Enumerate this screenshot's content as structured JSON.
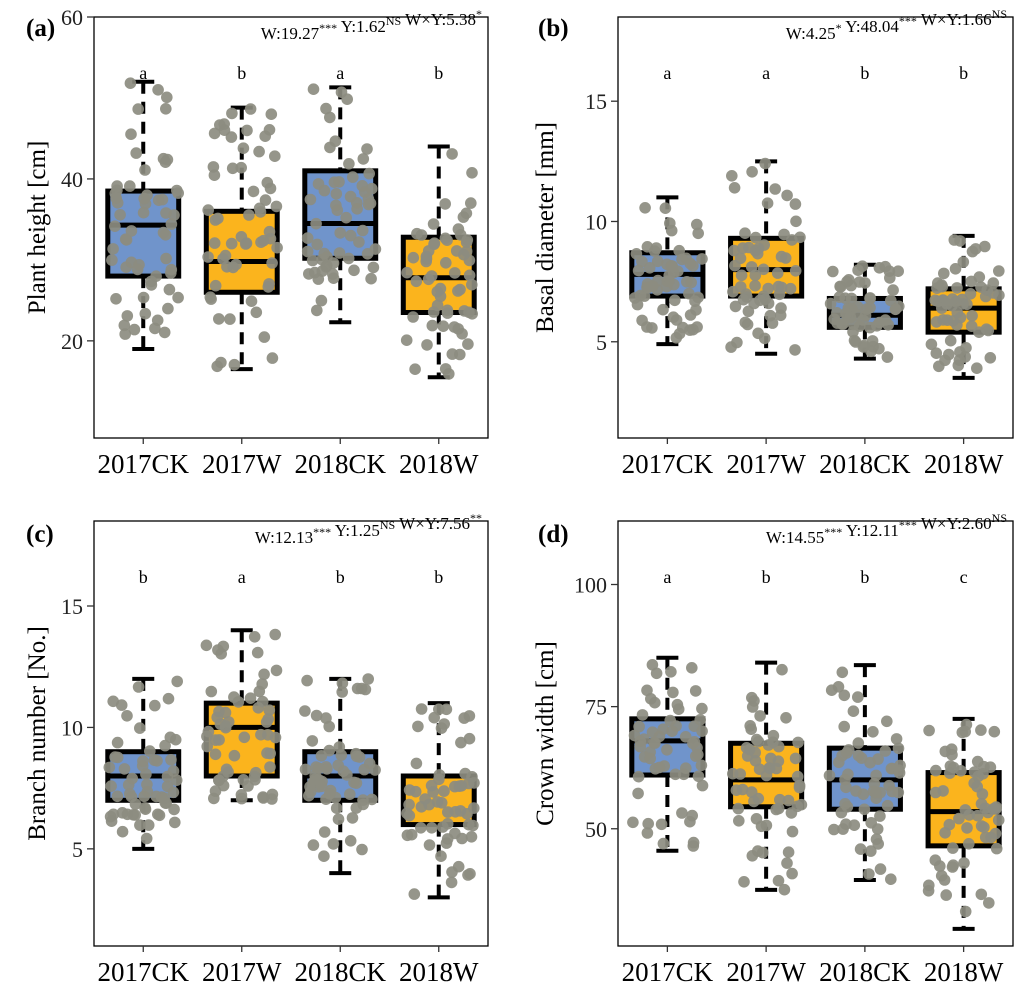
{
  "colors": {
    "CK": "#7094cb",
    "W": "#fbb41d",
    "points": "#8c8c80",
    "box_stroke": "#000000"
  },
  "chart_data": [
    {
      "type": "box",
      "panel_label": "(a)",
      "ylabel": "Plant height [cm]",
      "ylim": [
        8,
        60
      ],
      "yticks": [
        "20",
        "40",
        "60"
      ],
      "annotation": {
        "w": "W:19.27",
        "w_sig": "***",
        "y": "Y:1.62",
        "y_sig": "NS",
        "wy": "W×Y:5.38",
        "wy_sig": "*"
      },
      "categories": [
        "2017CK",
        "2017W",
        "2018CK",
        "2018W"
      ],
      "boxes": [
        {
          "group": "2017CK",
          "treatment": "CK",
          "min": 19,
          "q1": 28,
          "median": 34.3,
          "q3": 38.5,
          "max": 52,
          "letter": "a"
        },
        {
          "group": "2017W",
          "treatment": "W",
          "min": 16.5,
          "q1": 26,
          "median": 29.8,
          "q3": 36,
          "max": 48.8,
          "letter": "b"
        },
        {
          "group": "2018CK",
          "treatment": "CK",
          "min": 22.3,
          "q1": 30.2,
          "median": 34.5,
          "q3": 41,
          "max": 51.3,
          "letter": "a"
        },
        {
          "group": "2018W",
          "treatment": "W",
          "min": 15.5,
          "q1": 23.5,
          "median": 27.8,
          "q3": 32.8,
          "max": 44,
          "letter": "b"
        }
      ]
    },
    {
      "type": "box",
      "panel_label": "(b)",
      "ylabel": "Basal diameter [mm]",
      "ylim": [
        1,
        18.5
      ],
      "yticks": [
        "5",
        "10",
        "15"
      ],
      "annotation": {
        "w": "W:4.25",
        "w_sig": "*",
        "y": "Y:48.04",
        "y_sig": "***",
        "wy": "W×Y:1.66",
        "wy_sig": "NS"
      },
      "categories": [
        "2017CK",
        "2017W",
        "2018CK",
        "2018W"
      ],
      "boxes": [
        {
          "group": "2017CK",
          "treatment": "CK",
          "min": 4.9,
          "q1": 6.9,
          "median": 7.8,
          "q3": 8.7,
          "max": 11,
          "letter": "a"
        },
        {
          "group": "2017W",
          "treatment": "W",
          "min": 4.5,
          "q1": 6.9,
          "median": 8,
          "q3": 9.3,
          "max": 12.5,
          "letter": "a"
        },
        {
          "group": "2018CK",
          "treatment": "CK",
          "min": 4.3,
          "q1": 5.6,
          "median": 6.1,
          "q3": 6.8,
          "max": 8.2,
          "letter": "b"
        },
        {
          "group": "2018W",
          "treatment": "W",
          "min": 3.5,
          "q1": 5.4,
          "median": 6.4,
          "q3": 7.2,
          "max": 9.4,
          "letter": "b"
        }
      ]
    },
    {
      "type": "box",
      "panel_label": "(c)",
      "ylabel": "Branch number [No.]",
      "ylim": [
        1,
        18.5
      ],
      "yticks": [
        "5",
        "10",
        "15"
      ],
      "annotation": {
        "w": "W:12.13",
        "w_sig": "***",
        "y": "Y:1.25",
        "y_sig": "NS",
        "wy": "W×Y:7.56",
        "wy_sig": "**"
      },
      "categories": [
        "2017CK",
        "2017W",
        "2018CK",
        "2018W"
      ],
      "boxes": [
        {
          "group": "2017CK",
          "treatment": "CK",
          "min": 5,
          "q1": 7,
          "median": 8,
          "q3": 9,
          "max": 12,
          "letter": "b"
        },
        {
          "group": "2017W",
          "treatment": "W",
          "min": 7,
          "q1": 8,
          "median": 10,
          "q3": 11,
          "max": 14,
          "letter": "a"
        },
        {
          "group": "2018CK",
          "treatment": "CK",
          "min": 4,
          "q1": 7,
          "median": 8,
          "q3": 9,
          "max": 12,
          "letter": "b"
        },
        {
          "group": "2018W",
          "treatment": "W",
          "min": 3,
          "q1": 6,
          "median": 8,
          "q3": 8,
          "max": 11,
          "letter": "b"
        }
      ]
    },
    {
      "type": "box",
      "panel_label": "(d)",
      "ylabel": "Crown width [cm]",
      "ylim": [
        26,
        113
      ],
      "yticks": [
        "50",
        "75",
        "100"
      ],
      "annotation": {
        "w": "W:14.55",
        "w_sig": "***",
        "y": "Y:12.11",
        "y_sig": "***",
        "wy": "W×Y:2.60",
        "wy_sig": "NS"
      },
      "categories": [
        "2017CK",
        "2017W",
        "2018CK",
        "2018W"
      ],
      "boxes": [
        {
          "group": "2017CK",
          "treatment": "CK",
          "min": 45.5,
          "q1": 61,
          "median": 68,
          "q3": 72.5,
          "max": 85,
          "letter": "a"
        },
        {
          "group": "2017W",
          "treatment": "W",
          "min": 37.5,
          "q1": 54.5,
          "median": 60,
          "q3": 67.5,
          "max": 84,
          "letter": "b"
        },
        {
          "group": "2018CK",
          "treatment": "CK",
          "min": 39.5,
          "q1": 54,
          "median": 60,
          "q3": 66.5,
          "max": 83.5,
          "letter": "b"
        },
        {
          "group": "2018W",
          "treatment": "W",
          "min": 29.5,
          "q1": 46.5,
          "median": 53.5,
          "q3": 61.5,
          "max": 72.5,
          "letter": "c"
        }
      ]
    }
  ]
}
